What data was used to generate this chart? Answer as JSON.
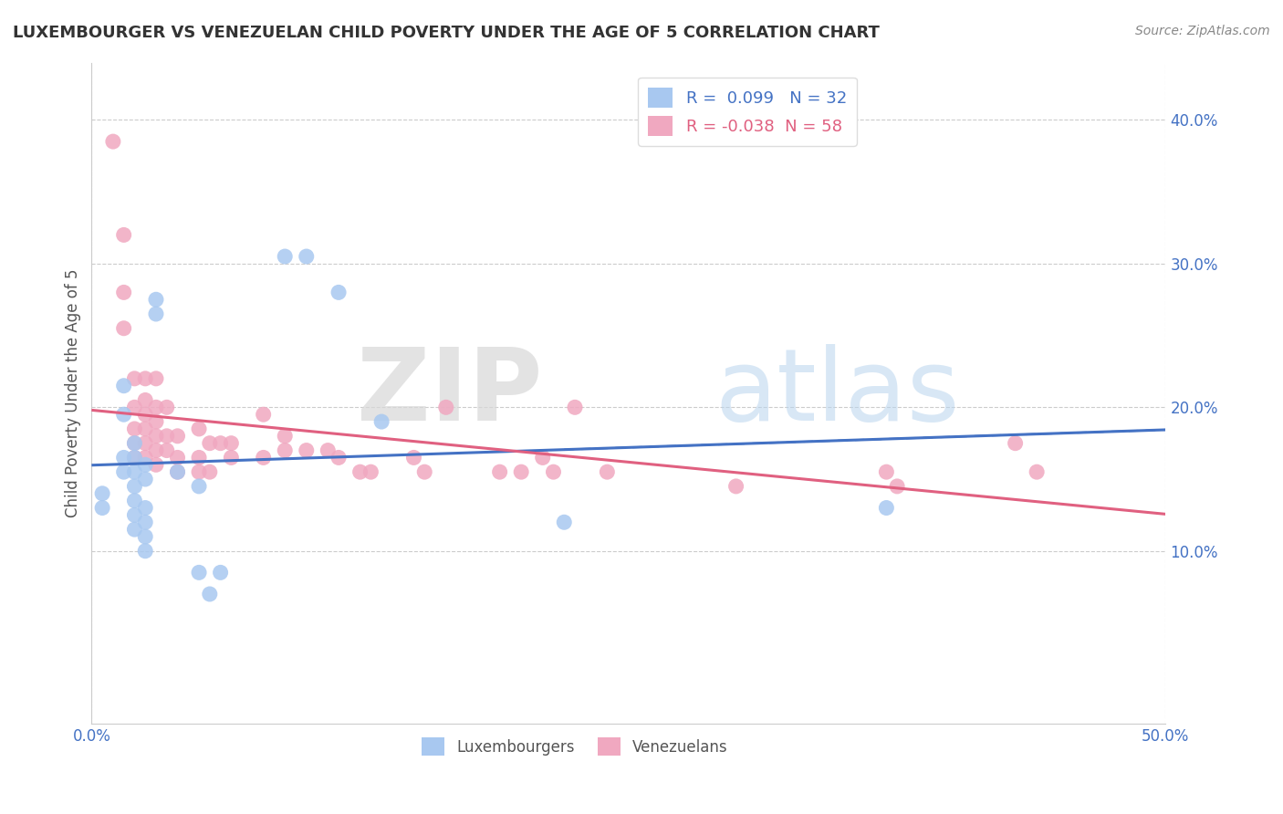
{
  "title": "LUXEMBOURGER VS VENEZUELAN CHILD POVERTY UNDER THE AGE OF 5 CORRELATION CHART",
  "source": "Source: ZipAtlas.com",
  "ylabel": "Child Poverty Under the Age of 5",
  "xlim": [
    0.0,
    0.5
  ],
  "ylim": [
    -0.02,
    0.44
  ],
  "xticks": [
    0.0,
    0.1,
    0.2,
    0.3,
    0.4,
    0.5
  ],
  "xticklabels": [
    "0.0%",
    "",
    "",
    "",
    "",
    "50.0%"
  ],
  "yticks": [
    0.1,
    0.2,
    0.3,
    0.4
  ],
  "yticklabels": [
    "10.0%",
    "20.0%",
    "30.0%",
    "40.0%"
  ],
  "legend_r_lux": " 0.099",
  "legend_n_lux": "32",
  "legend_r_ven": "-0.038",
  "legend_n_ven": "58",
  "lux_color": "#a8c8f0",
  "ven_color": "#f0a8c0",
  "lux_line_color": "#4472c4",
  "ven_line_color": "#e06080",
  "background_color": "#ffffff",
  "grid_color": "#cccccc",
  "lux_scatter": [
    [
      0.005,
      0.14
    ],
    [
      0.005,
      0.13
    ],
    [
      0.015,
      0.195
    ],
    [
      0.015,
      0.215
    ],
    [
      0.015,
      0.165
    ],
    [
      0.015,
      0.155
    ],
    [
      0.02,
      0.175
    ],
    [
      0.02,
      0.165
    ],
    [
      0.02,
      0.155
    ],
    [
      0.02,
      0.145
    ],
    [
      0.02,
      0.135
    ],
    [
      0.02,
      0.125
    ],
    [
      0.02,
      0.115
    ],
    [
      0.025,
      0.16
    ],
    [
      0.025,
      0.15
    ],
    [
      0.025,
      0.13
    ],
    [
      0.025,
      0.12
    ],
    [
      0.025,
      0.11
    ],
    [
      0.025,
      0.1
    ],
    [
      0.03,
      0.275
    ],
    [
      0.03,
      0.265
    ],
    [
      0.04,
      0.155
    ],
    [
      0.05,
      0.145
    ],
    [
      0.05,
      0.085
    ],
    [
      0.055,
      0.07
    ],
    [
      0.06,
      0.085
    ],
    [
      0.09,
      0.305
    ],
    [
      0.1,
      0.305
    ],
    [
      0.115,
      0.28
    ],
    [
      0.135,
      0.19
    ],
    [
      0.22,
      0.12
    ],
    [
      0.37,
      0.13
    ]
  ],
  "ven_scatter": [
    [
      0.01,
      0.385
    ],
    [
      0.015,
      0.32
    ],
    [
      0.015,
      0.28
    ],
    [
      0.015,
      0.255
    ],
    [
      0.02,
      0.22
    ],
    [
      0.02,
      0.2
    ],
    [
      0.02,
      0.185
    ],
    [
      0.02,
      0.175
    ],
    [
      0.02,
      0.165
    ],
    [
      0.025,
      0.22
    ],
    [
      0.025,
      0.205
    ],
    [
      0.025,
      0.195
    ],
    [
      0.025,
      0.185
    ],
    [
      0.025,
      0.175
    ],
    [
      0.025,
      0.165
    ],
    [
      0.03,
      0.22
    ],
    [
      0.03,
      0.2
    ],
    [
      0.03,
      0.19
    ],
    [
      0.03,
      0.18
    ],
    [
      0.03,
      0.17
    ],
    [
      0.03,
      0.16
    ],
    [
      0.035,
      0.2
    ],
    [
      0.035,
      0.18
    ],
    [
      0.035,
      0.17
    ],
    [
      0.04,
      0.18
    ],
    [
      0.04,
      0.165
    ],
    [
      0.04,
      0.155
    ],
    [
      0.05,
      0.185
    ],
    [
      0.05,
      0.165
    ],
    [
      0.05,
      0.155
    ],
    [
      0.055,
      0.175
    ],
    [
      0.055,
      0.155
    ],
    [
      0.06,
      0.175
    ],
    [
      0.065,
      0.175
    ],
    [
      0.065,
      0.165
    ],
    [
      0.08,
      0.195
    ],
    [
      0.08,
      0.165
    ],
    [
      0.09,
      0.18
    ],
    [
      0.09,
      0.17
    ],
    [
      0.1,
      0.17
    ],
    [
      0.11,
      0.17
    ],
    [
      0.115,
      0.165
    ],
    [
      0.125,
      0.155
    ],
    [
      0.13,
      0.155
    ],
    [
      0.15,
      0.165
    ],
    [
      0.155,
      0.155
    ],
    [
      0.165,
      0.2
    ],
    [
      0.19,
      0.155
    ],
    [
      0.2,
      0.155
    ],
    [
      0.21,
      0.165
    ],
    [
      0.215,
      0.155
    ],
    [
      0.225,
      0.2
    ],
    [
      0.24,
      0.155
    ],
    [
      0.3,
      0.145
    ],
    [
      0.37,
      0.155
    ],
    [
      0.375,
      0.145
    ],
    [
      0.43,
      0.175
    ],
    [
      0.44,
      0.155
    ]
  ]
}
